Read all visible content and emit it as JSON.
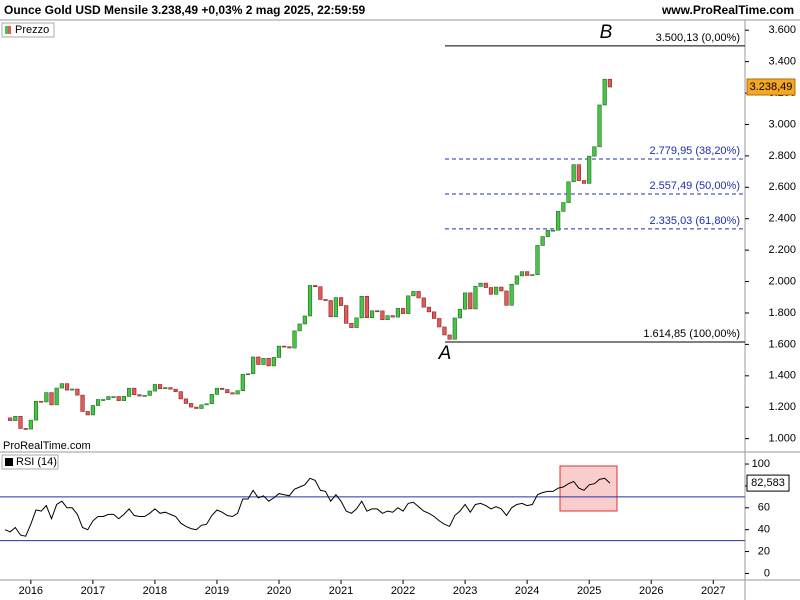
{
  "header": {
    "title": "Ounce Gold USD Mensile 3.238,49 +0,03% 2 mag 2025, 22:59:59",
    "site": "www.ProRealTime.com"
  },
  "chart_data": [
    {
      "type": "candlestick",
      "legend": "Prezzo",
      "watermark": "ProRealTime.com",
      "up_color": "#47c447",
      "down_color": "#e05a5a",
      "categories": [
        null,
        null,
        null,
        null,
        null,
        "2016",
        null,
        null,
        null,
        null,
        null,
        null,
        null,
        null,
        null,
        null,
        null,
        "2017",
        null,
        null,
        null,
        null,
        null,
        null,
        null,
        null,
        null,
        null,
        null,
        "2018",
        null,
        null,
        null,
        null,
        null,
        null,
        null,
        null,
        null,
        null,
        null,
        "2019",
        null,
        null,
        null,
        null,
        null,
        null,
        null,
        null,
        null,
        null,
        null,
        "2020",
        null,
        null,
        null,
        null,
        null,
        null,
        null,
        null,
        null,
        null,
        null,
        "2021",
        null,
        null,
        null,
        null,
        null,
        null,
        null,
        null,
        null,
        null,
        null,
        "2022",
        null,
        null,
        null,
        null,
        null,
        null,
        null,
        null,
        null,
        null,
        null,
        "2023",
        null,
        null,
        null,
        null,
        null,
        null,
        null,
        null,
        null,
        null,
        null,
        "2024",
        null,
        null,
        null,
        null,
        null,
        null,
        null,
        null,
        null,
        null,
        null,
        "2025",
        null,
        null,
        null,
        null,
        null,
        null,
        null,
        null,
        null,
        null,
        null,
        "2026",
        null,
        null,
        null,
        null,
        null,
        null,
        null,
        null,
        null,
        null,
        null,
        "2027",
        null,
        null,
        null,
        null,
        null
      ],
      "close": [
        1132,
        1115,
        1142,
        1065,
        1061,
        1118,
        1238,
        1234,
        1293,
        1215,
        1322,
        1350,
        1309,
        1316,
        1277,
        1173,
        1151,
        1211,
        1249,
        1249,
        1268,
        1268,
        1242,
        1269,
        1321,
        1280,
        1271,
        1275,
        1303,
        1345,
        1318,
        1325,
        1315,
        1299,
        1253,
        1224,
        1201,
        1192,
        1215,
        1222,
        1282,
        1321,
        1313,
        1292,
        1284,
        1305,
        1409,
        1413,
        1520,
        1472,
        1511,
        1463,
        1517,
        1589,
        1585,
        1577,
        1686,
        1730,
        1781,
        1975,
        1967,
        1886,
        1879,
        1776,
        1898,
        1847,
        1734,
        1707,
        1769,
        1906,
        1770,
        1814,
        1813,
        1757,
        1783,
        1774,
        1829,
        1796,
        1909,
        1937,
        1896,
        1837,
        1807,
        1765,
        1711,
        1660,
        1633,
        1768,
        1824,
        1928,
        1826,
        1969,
        1990,
        1962,
        1919,
        1965,
        1940,
        1849,
        1983,
        2036,
        2063,
        2039,
        2044,
        2230,
        2286,
        2327,
        2327,
        2447,
        2503,
        2635,
        2744,
        2643,
        2625,
        2798,
        2858,
        3124,
        3288,
        3238.49,
        null,
        null,
        null,
        null,
        null,
        null,
        null,
        null,
        null,
        null,
        null,
        null,
        null,
        null,
        null,
        null,
        null,
        null,
        null,
        null,
        null,
        null,
        null,
        null,
        null
      ],
      "last_value_label": "3.238,49",
      "ylim": [
        915,
        3665
      ],
      "yticks": [
        {
          "value": 1000,
          "label": "1.000"
        },
        {
          "value": 1200,
          "label": "1.200"
        },
        {
          "value": 1400,
          "label": "1.400"
        },
        {
          "value": 1600,
          "label": "1.600"
        },
        {
          "value": 1800,
          "label": "1.800"
        },
        {
          "value": 2000,
          "label": "2.000"
        },
        {
          "value": 2200,
          "label": "2.200"
        },
        {
          "value": 2400,
          "label": "2.400"
        },
        {
          "value": 2600,
          "label": "2.600"
        },
        {
          "value": 2800,
          "label": "2.800"
        },
        {
          "value": 3000,
          "label": "3.000"
        },
        {
          "value": 3200,
          "label": "3.200"
        },
        {
          "value": 3400,
          "label": "3.400"
        },
        {
          "value": 3600,
          "label": "3.600"
        }
      ],
      "fib_levels": [
        {
          "value": 3500.13,
          "label": "3.500,13 (0,00%)",
          "color": "#000000",
          "style": "solid"
        },
        {
          "value": 2779.95,
          "label": "2.779,95 (38,20%)",
          "color": "#1f2fb0",
          "style": "dashed"
        },
        {
          "value": 2557.49,
          "label": "2.557,49 (50,00%)",
          "color": "#1f2fb0",
          "style": "dashed"
        },
        {
          "value": 2335.03,
          "label": "2.335,03 (61,80%)",
          "color": "#1f2fb0",
          "style": "dashed"
        },
        {
          "value": 1614.85,
          "label": "1.614,85 (100,00%)",
          "color": "#000000",
          "style": "solid"
        }
      ],
      "point_labels": [
        "A",
        "B"
      ]
    },
    {
      "type": "line",
      "legend": "RSI (14)",
      "color": "#000000",
      "values": [
        40,
        38,
        42,
        35,
        34,
        45,
        58,
        57,
        62,
        50,
        63,
        66,
        60,
        60,
        54,
        42,
        40,
        48,
        52,
        52,
        54,
        54,
        50,
        54,
        59,
        53,
        52,
        52,
        55,
        59,
        55,
        56,
        54,
        52,
        46,
        43,
        41,
        40,
        44,
        45,
        53,
        58,
        56,
        53,
        52,
        55,
        68,
        68,
        76,
        69,
        71,
        66,
        69,
        73,
        72,
        71,
        77,
        79,
        81,
        87,
        85,
        76,
        75,
        66,
        72,
        66,
        57,
        55,
        59,
        66,
        57,
        59,
        59,
        55,
        57,
        56,
        60,
        57,
        64,
        65,
        61,
        57,
        55,
        52,
        48,
        45,
        43,
        53,
        57,
        63,
        56,
        63,
        64,
        62,
        59,
        61,
        59,
        53,
        60,
        63,
        64,
        62,
        63,
        72,
        74,
        75,
        75,
        78,
        79,
        82,
        84,
        78,
        76,
        81,
        82,
        86,
        87,
        82.583,
        null,
        null,
        null,
        null,
        null,
        null,
        null,
        null,
        null,
        null,
        null,
        null,
        null,
        null,
        null,
        null,
        null,
        null,
        null,
        null,
        null,
        null,
        null,
        null,
        null
      ],
      "last_value_label": "82,583",
      "levels": [
        70,
        30
      ],
      "level_color": "#2233aa",
      "ylim": [
        -6,
        111
      ],
      "yticks": [
        0,
        20,
        40,
        60,
        80,
        100
      ]
    }
  ]
}
